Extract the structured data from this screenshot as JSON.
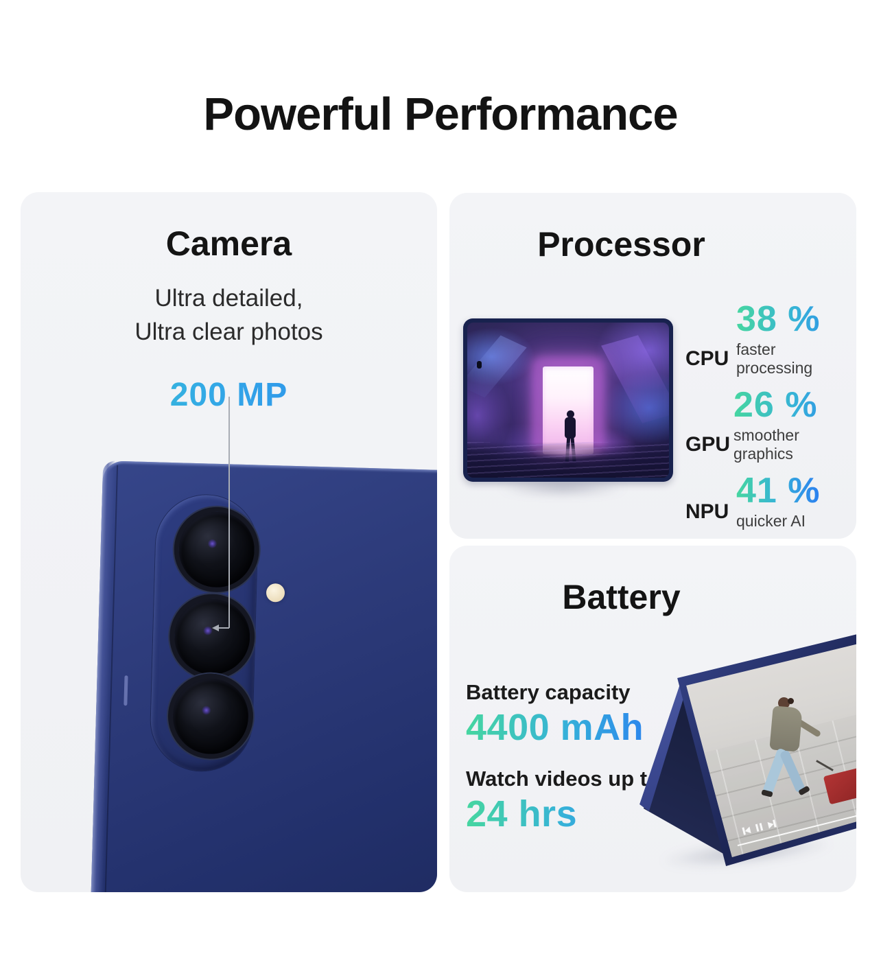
{
  "page": {
    "title": "Powerful Performance"
  },
  "cards": {
    "camera": {
      "title": "Camera",
      "subtitle_line1": "Ultra detailed,",
      "subtitle_line2": "Ultra clear photos",
      "spec": "200 MP",
      "image_description": "navy blue foldable phone rear with triple camera lenses and flash"
    },
    "processor": {
      "title": "Processor",
      "stats": [
        {
          "label": "CPU",
          "value": "38 %",
          "desc": "faster processing"
        },
        {
          "label": "GPU",
          "value": "26 %",
          "desc": "smoother graphics"
        },
        {
          "label": "NPU",
          "value": "41 %",
          "desc": "quicker AI"
        }
      ],
      "image_description": "unfolded phone screen showing game scene with glowing doorway and silhouetted figure"
    },
    "battery": {
      "title": "Battery",
      "capacity_label": "Battery capacity",
      "capacity_value": "4400 mAh",
      "video_label": "Watch videos up to",
      "video_value": "24 hrs",
      "image_description": "tent-folded phone playing video of woman walking with red suitcase"
    }
  },
  "colors": {
    "accent_gradient_start": "#46d6a0",
    "accent_gradient_mid": "#36b2d8",
    "accent_gradient_end": "#2b7ff0",
    "phone_navy": "#2c3a79",
    "card_background": "#f2f3f6",
    "title_text": "#131313"
  }
}
